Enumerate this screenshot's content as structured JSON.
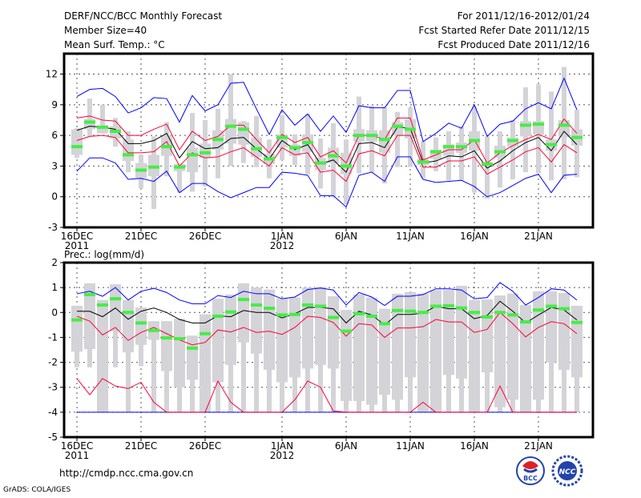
{
  "header": {
    "title": "DERF/NCC/BCC Monthly Forecast",
    "member_size": "Member Size=40",
    "period": "For 2011/12/16-2012/01/24",
    "started": "Fcst Started Refer Date 2011/12/15",
    "produced": "Fcst Produced Date 2011/12/16"
  },
  "footer": {
    "url": "http://cmdp.ncc.cma.gov.cn",
    "credit": "GrADS: COLA/IGES",
    "logo_bcc": "BCC",
    "logo_ncc": "NCC"
  },
  "colors": {
    "envelope": "#0000ff",
    "spread": "#ff0033",
    "mean": "#000000",
    "obs": "#44ee44",
    "box": "#d3d3d8"
  },
  "x_ticks": [
    {
      "day": 0,
      "label": "16DEC",
      "sub": "2011"
    },
    {
      "day": 5,
      "label": "21DEC",
      "sub": ""
    },
    {
      "day": 10,
      "label": "26DEC",
      "sub": ""
    },
    {
      "day": 16,
      "label": "1JAN",
      "sub": "2012"
    },
    {
      "day": 21,
      "label": "6JAN",
      "sub": ""
    },
    {
      "day": 26,
      "label": "11JAN",
      "sub": ""
    },
    {
      "day": 31,
      "label": "16JAN",
      "sub": ""
    },
    {
      "day": 36,
      "label": "21JAN",
      "sub": ""
    }
  ],
  "chart_data": [
    {
      "type": "line",
      "title": "Mean Surf. Temp.: °C",
      "ylim": [
        -3,
        14
      ],
      "yticks": [
        -3,
        0,
        3,
        6,
        9,
        12
      ],
      "grid": true,
      "days": 40,
      "series": [
        {
          "name": "ensemble max",
          "color": "envelope",
          "values": [
            9.8,
            10.5,
            10.6,
            9.8,
            8.2,
            8.7,
            9.7,
            9.6,
            7.3,
            9.9,
            8.4,
            9.0,
            11.1,
            11.2,
            8.6,
            6.1,
            8.5,
            7.0,
            8.1,
            6.4,
            7.9,
            6.3,
            8.9,
            8.7,
            8.7,
            10.4,
            10.4,
            5.4,
            6.2,
            7.2,
            6.7,
            9.0,
            5.9,
            7.1,
            7.4,
            8.6,
            9.2,
            8.6,
            11.6,
            8.5
          ]
        },
        {
          "name": "ensemble min",
          "color": "envelope",
          "values": [
            2.5,
            3.8,
            3.8,
            3.3,
            1.7,
            1.8,
            1.5,
            2.5,
            0.4,
            1.3,
            1.3,
            0.5,
            -0.1,
            0.4,
            0.9,
            0.9,
            2.4,
            2.3,
            2.1,
            0.1,
            0.1,
            -1.0,
            2.1,
            2.4,
            1.5,
            3.9,
            3.9,
            1.7,
            1.4,
            1.5,
            1.6,
            1.0,
            0.0,
            0.4,
            1.1,
            1.8,
            2.2,
            0.4,
            2.1,
            2.2
          ]
        },
        {
          "name": "mean + sd",
          "color": "spread",
          "values": [
            7.7,
            7.9,
            7.5,
            7.4,
            6.0,
            6.0,
            6.6,
            7.1,
            4.6,
            6.4,
            5.5,
            5.9,
            7.0,
            7.0,
            5.6,
            4.3,
            6.1,
            5.3,
            5.8,
            3.9,
            4.5,
            3.3,
            6.0,
            6.0,
            5.6,
            7.7,
            7.7,
            3.6,
            4.1,
            4.6,
            4.6,
            5.6,
            3.3,
            4.3,
            5.0,
            5.6,
            6.1,
            5.6,
            7.6,
            6.2
          ]
        },
        {
          "name": "mean - sd",
          "color": "spread",
          "values": [
            5.5,
            5.9,
            6.0,
            5.8,
            4.3,
            4.3,
            4.4,
            5.4,
            3.0,
            4.3,
            3.8,
            3.9,
            4.4,
            4.8,
            3.9,
            3.0,
            4.8,
            4.1,
            4.3,
            2.4,
            2.6,
            1.5,
            4.2,
            4.5,
            4.0,
            6.0,
            6.0,
            2.9,
            2.9,
            3.5,
            3.5,
            3.9,
            2.2,
            2.9,
            3.6,
            4.4,
            4.8,
            3.4,
            5.1,
            4.3
          ]
        },
        {
          "name": "ensemble mean",
          "color": "mean",
          "values": [
            6.5,
            6.9,
            6.8,
            6.6,
            5.2,
            5.2,
            5.5,
            6.2,
            3.8,
            5.4,
            4.7,
            4.8,
            5.7,
            5.8,
            4.7,
            3.7,
            5.5,
            4.6,
            5.1,
            3.2,
            3.6,
            2.4,
            5.2,
            5.3,
            4.8,
            6.8,
            6.7,
            3.3,
            3.5,
            4.0,
            3.9,
            4.5,
            2.8,
            3.5,
            4.5,
            5.3,
            5.8,
            4.5,
            6.4,
            5.1
          ]
        }
      ],
      "obs": [
        4.9,
        7.3,
        6.8,
        6.4,
        4.1,
        2.6,
        2.9,
        4.9,
        2.9,
        4.1,
        4.3,
        5.6,
        6.9,
        6.6,
        4.7,
        3.7,
        5.8,
        4.8,
        5.3,
        3.3,
        4.0,
        3.0,
        6.0,
        6.0,
        5.6,
        6.9,
        6.6,
        3.4,
        4.4,
        4.9,
        4.9,
        5.5,
        3.2,
        4.4,
        5.5,
        7.0,
        7.1,
        5.1,
        7.0,
        5.8
      ],
      "box_max": [
        6.7,
        9.6,
        9.0,
        7.7,
        6.4,
        4.1,
        5.9,
        7.3,
        3.2,
        8.2,
        7.5,
        8.6,
        12.0,
        7.4,
        7.9,
        5.6,
        8.0,
        6.1,
        8.1,
        5.7,
        7.2,
        5.6,
        9.8,
        8.9,
        8.8,
        8.3,
        8.7,
        5.4,
        5.8,
        6.4,
        6.9,
        8.8,
        5.9,
        6.4,
        7.5,
        10.7,
        11.0,
        10.3,
        12.7,
        8.5
      ],
      "box_q3": [
        6.6,
        7.6,
        7.0,
        6.9,
        5.6,
        3.3,
        4.1,
        6.0,
        3.2,
        4.8,
        5.2,
        6.5,
        7.6,
        7.3,
        5.8,
        4.2,
        6.1,
        5.1,
        6.1,
        3.8,
        4.8,
        4.3,
        6.6,
        6.5,
        6.5,
        7.3,
        7.6,
        3.7,
        4.6,
        5.1,
        5.3,
        6.4,
        3.3,
        5.0,
        5.8,
        7.4,
        7.4,
        5.6,
        7.5,
        6.6
      ],
      "box_q1": [
        4.1,
        6.6,
        6.2,
        5.7,
        3.5,
        1.8,
        2.0,
        4.0,
        2.5,
        2.4,
        3.8,
        4.6,
        5.2,
        5.1,
        3.9,
        3.2,
        4.8,
        4.0,
        4.4,
        2.6,
        3.3,
        2.2,
        5.4,
        5.4,
        4.3,
        6.0,
        5.7,
        3.1,
        3.7,
        4.0,
        4.3,
        4.5,
        2.9,
        3.8,
        4.9,
        5.9,
        6.1,
        4.5,
        5.8,
        5.0
      ],
      "box_min": [
        3.8,
        5.9,
        6.2,
        4.9,
        2.4,
        0.8,
        -1.2,
        2.0,
        0.4,
        0.5,
        1.0,
        1.8,
        3.0,
        3.3,
        2.9,
        1.8,
        3.6,
        3.1,
        2.2,
        0.8,
        0.0,
        -0.7,
        2.3,
        2.4,
        1.3,
        2.9,
        2.9,
        1.8,
        2.5,
        1.6,
        1.6,
        0.4,
        -0.2,
        0.9,
        1.7,
        2.4,
        2.3,
        1.6,
        1.7,
        1.9
      ]
    },
    {
      "type": "line",
      "title": "Prec.: log(mm/d)",
      "ylim": [
        -5,
        2
      ],
      "yticks": [
        -5,
        -4,
        -3,
        -2,
        -1,
        0,
        1,
        2
      ],
      "grid": true,
      "days": 40,
      "series": [
        {
          "name": "ensemble max",
          "color": "envelope",
          "values": [
            0.75,
            0.85,
            0.65,
            1.0,
            0.5,
            0.85,
            0.97,
            0.8,
            0.5,
            0.35,
            0.35,
            0.68,
            0.6,
            0.85,
            0.75,
            0.75,
            0.55,
            0.62,
            0.92,
            0.98,
            0.9,
            0.3,
            0.8,
            0.62,
            0.28,
            0.65,
            0.65,
            0.72,
            0.95,
            0.95,
            0.9,
            0.55,
            0.6,
            1.2,
            0.85,
            0.3,
            0.6,
            0.95,
            0.9,
            0.5
          ]
        },
        {
          "name": "ensemble min",
          "color": "envelope",
          "values": [
            -4,
            -4,
            -4,
            -4,
            -4,
            -4,
            -4,
            -4,
            -4,
            -4,
            -4,
            -4,
            -4,
            -4,
            -4,
            -4,
            -4,
            -4,
            -4,
            -4,
            -4,
            -4,
            -4,
            -4,
            -4,
            -4,
            -4,
            -4,
            -4,
            -4,
            -4,
            -4,
            -4,
            -4,
            -4,
            -4,
            -4,
            -4,
            -4,
            -4
          ]
        },
        {
          "name": "mean + sd",
          "color": "spread",
          "values": [
            -0.15,
            -0.35,
            -0.9,
            -0.6,
            -1.12,
            -0.8,
            -0.6,
            -0.85,
            -1.1,
            -1.3,
            -1.2,
            -0.7,
            -0.78,
            -0.6,
            -0.8,
            -0.75,
            -0.88,
            -0.6,
            -0.15,
            -0.2,
            -0.4,
            -0.95,
            -0.45,
            -0.5,
            -1.0,
            -0.62,
            -0.62,
            -0.57,
            -0.28,
            -0.38,
            -0.38,
            -0.8,
            -0.68,
            0.0,
            -0.45,
            -0.98,
            -0.6,
            -0.37,
            -0.45,
            -0.85
          ]
        },
        {
          "name": "mean - sd",
          "color": "spread",
          "values": [
            -2.65,
            -3.3,
            -2.65,
            -2.95,
            -3.05,
            -2.8,
            -3.6,
            -4,
            -4,
            -4,
            -4,
            -2.75,
            -3.6,
            -4,
            -4,
            -4,
            -4,
            -3.5,
            -2.75,
            -3.0,
            -3.95,
            -4,
            -4,
            -4,
            -4,
            -4,
            -4,
            -3.6,
            -4,
            -4,
            -4,
            -4,
            -4,
            -2.95,
            -4,
            -4,
            -4,
            -4,
            -4,
            -4
          ]
        },
        {
          "name": "ensemble mean",
          "color": "mean",
          "values": [
            0.05,
            0.05,
            -0.17,
            0.18,
            -0.27,
            0.05,
            0.18,
            0.0,
            -0.28,
            -0.42,
            -0.42,
            -0.13,
            -0.17,
            0.08,
            0.0,
            0.0,
            -0.22,
            -0.05,
            0.2,
            0.2,
            0.15,
            -0.42,
            0.05,
            -0.1,
            -0.5,
            -0.08,
            -0.08,
            -0.03,
            0.25,
            0.15,
            0.15,
            -0.25,
            -0.12,
            0.45,
            0.05,
            -0.42,
            -0.1,
            0.2,
            0.1,
            -0.3
          ]
        }
      ],
      "obs": [
        -0.3,
        0.72,
        0.3,
        0.55,
        0.0,
        -0.42,
        -0.72,
        -1.02,
        -1.05,
        -1.43,
        -0.85,
        -0.15,
        0.02,
        0.52,
        0.3,
        0.17,
        -0.1,
        -0.08,
        0.3,
        0.25,
        -0.2,
        -0.75,
        -0.05,
        -0.15,
        -0.45,
        0.08,
        0.05,
        0.0,
        0.25,
        0.27,
        0.18,
        0.0,
        -0.18,
        0.0,
        -0.1,
        -0.38,
        0.1,
        0.25,
        0.15,
        -0.4
      ],
      "box_max": [
        0.27,
        1.17,
        0.5,
        1.13,
        0.5,
        0.2,
        -0.35,
        -0.35,
        -0.25,
        -0.93,
        -0.07,
        0.55,
        0.72,
        1.17,
        1.0,
        0.92,
        0.57,
        0.6,
        1.0,
        1.03,
        0.65,
        0.1,
        0.72,
        0.6,
        0.15,
        0.75,
        0.82,
        0.76,
        0.9,
        0.9,
        1.07,
        0.5,
        0.52,
        0.68,
        0.76,
        0.3,
        0.85,
        0.85,
        0.78,
        0.27
      ],
      "box_q3": [
        0.27,
        1.17,
        0.5,
        1.13,
        0.5,
        0.2,
        -0.35,
        -0.35,
        -0.25,
        -0.93,
        -0.07,
        0.55,
        0.72,
        1.17,
        1.0,
        0.92,
        0.57,
        0.6,
        1.0,
        1.03,
        0.65,
        0.1,
        0.72,
        0.6,
        0.15,
        0.75,
        0.82,
        0.76,
        0.9,
        0.9,
        1.07,
        0.5,
        0.52,
        0.68,
        0.76,
        0.3,
        0.85,
        0.85,
        0.78,
        0.27
      ],
      "box_q1": [
        -1.57,
        -1.47,
        -4,
        -0.75,
        -1.6,
        -1.3,
        -1.1,
        -2.35,
        -3.0,
        -2.7,
        -4,
        -2.8,
        -2.1,
        -1.2,
        -1.65,
        -2.3,
        -2.8,
        -2.6,
        -2.25,
        -2.1,
        -2.25,
        -3.55,
        -3.55,
        -3.7,
        -3.3,
        -3.5,
        -2.6,
        -4,
        -4,
        -2.5,
        -2.65,
        -4,
        -2.4,
        -3.8,
        -3.5,
        -4,
        -3.5,
        -2.0,
        -2.3,
        -2.6
      ],
      "box_min": [
        -2.2,
        -2.2,
        -4,
        -2.2,
        -4,
        -2.15,
        -4,
        -4,
        -4,
        -4,
        -4,
        -4,
        -4,
        -4,
        -4,
        -4,
        -4,
        -4,
        -4,
        -4,
        -4,
        -4,
        -4,
        -4,
        -4,
        -4,
        -4,
        -4,
        -4,
        -4,
        -4,
        -4,
        -4,
        -4,
        -4,
        -4,
        -4,
        -4,
        -4,
        -4
      ]
    }
  ]
}
